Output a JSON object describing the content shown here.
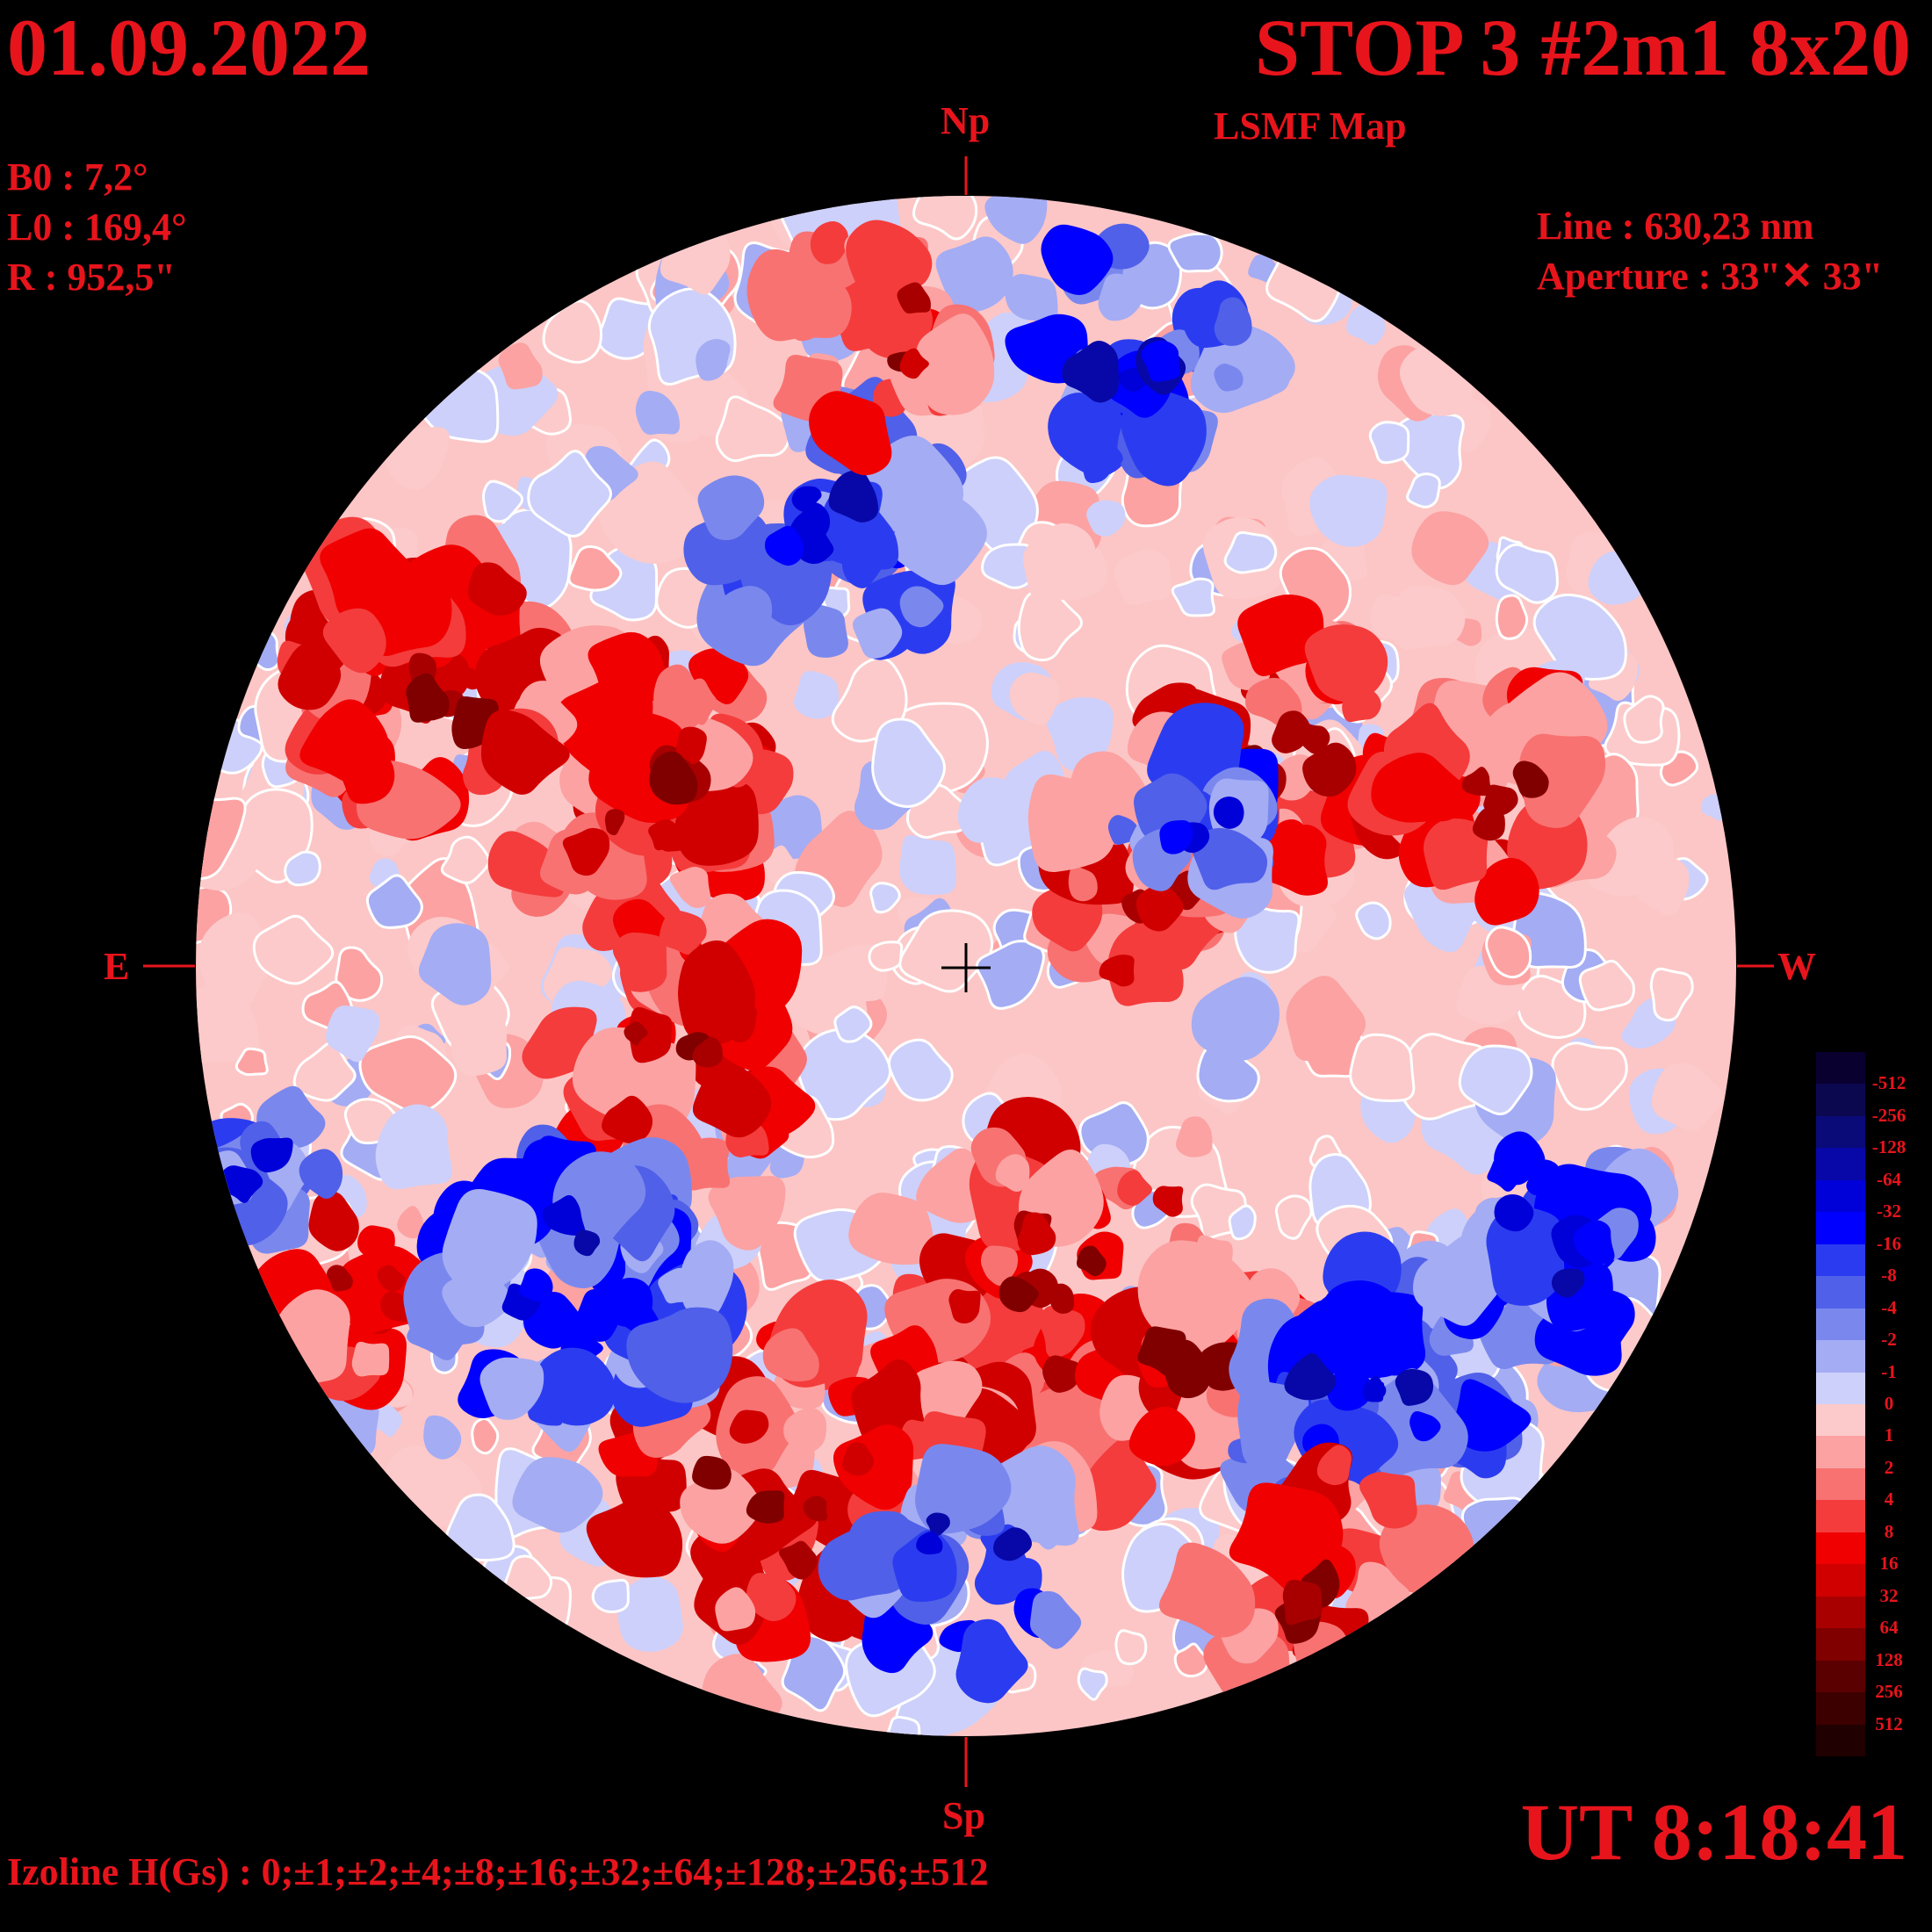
{
  "header": {
    "date": "01.09.2022",
    "title": "STOP 3 #2m1 8x20",
    "subtitle": "LSMF  Map"
  },
  "params": {
    "b0": "B0 : 7,2°",
    "l0": "L0 : 169,4°",
    "r": "R  : 952,5\"",
    "line": "Line :  630,23 nm",
    "aperture": "Aperture : 33\"✕ 33\""
  },
  "directions": {
    "north": "Np",
    "south": "Sp",
    "east": "E",
    "west": "W"
  },
  "time": "UT 8:18:41",
  "izoline": "Izoline H(Gs) : 0;±1;±2;±4;±8;±16;±32;±64;±128;±256;±512",
  "colors": {
    "background": "#000000",
    "text": "#e8141c",
    "contour_line": "#ffffff"
  },
  "scale": {
    "labels": [
      "-512",
      "-256",
      "-128",
      "-64",
      "-32",
      "-16",
      "-8",
      "-4",
      "-2",
      "-1",
      "0",
      "1",
      "2",
      "4",
      "8",
      "16",
      "32",
      "64",
      "128",
      "256",
      "512"
    ],
    "colors": [
      "#0a0030",
      "#0c0850",
      "#0a0a78",
      "#0808a8",
      "#0000d8",
      "#0000ff",
      "#2b3cf0",
      "#5060e8",
      "#7a88ee",
      "#a4acf4",
      "#cdd0fa",
      "#fccaca",
      "#fca2a2",
      "#f87272",
      "#f43c3c",
      "#f00000",
      "#d00000",
      "#a80000",
      "#800000",
      "#5a0000",
      "#3c0000",
      "#200000"
    ]
  }
}
